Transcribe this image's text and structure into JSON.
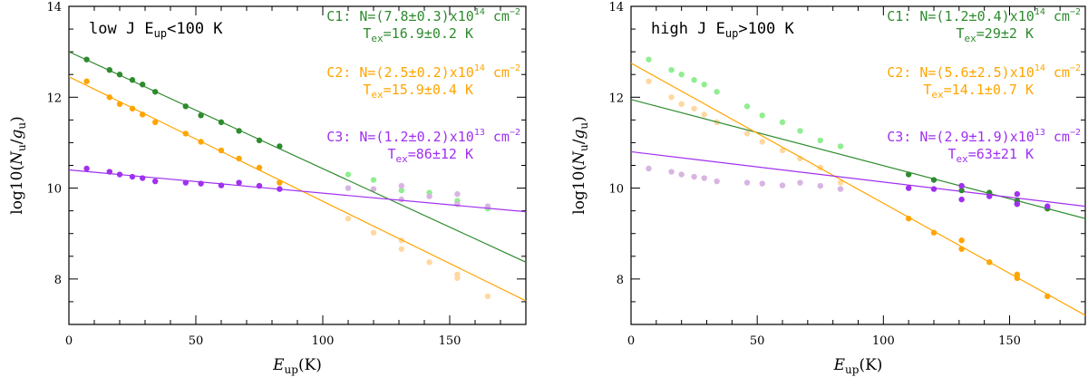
{
  "chart_data": [
    {
      "type": "scatter",
      "panel_title": {
        "pre": "low J E",
        "sub": "up",
        "post": "<100 K"
      },
      "xlabel": {
        "main": "E",
        "sub": "up",
        "post": "(K)"
      },
      "ylabel": {
        "main": "log10(N",
        "sub1": "u",
        "mid": "/g",
        "sub2": "u",
        "post": ")"
      },
      "xlim": [
        0,
        180
      ],
      "ylim": [
        7,
        14
      ],
      "xticks": [
        0,
        50,
        100,
        150
      ],
      "yticks": [
        8,
        10,
        12,
        14
      ],
      "series": [
        {
          "name": "C1",
          "color": "#2e8b2e",
          "faded_color": "#90ee90",
          "active": [
            [
              7,
              12.83
            ],
            [
              16,
              12.6
            ],
            [
              20,
              12.5
            ],
            [
              25,
              12.38
            ],
            [
              29,
              12.28
            ],
            [
              34,
              12.12
            ],
            [
              46,
              11.8
            ],
            [
              52,
              11.6
            ],
            [
              60,
              11.45
            ],
            [
              67,
              11.26
            ],
            [
              75,
              11.05
            ],
            [
              83,
              10.92
            ]
          ],
          "inactive": [
            [
              110,
              10.3
            ],
            [
              120,
              10.18
            ],
            [
              131,
              9.95
            ],
            [
              142,
              9.9
            ],
            [
              153,
              9.65
            ],
            [
              153,
              9.72
            ],
            [
              165,
              9.55
            ]
          ],
          "fit": [
            [
              0,
              13.0
            ],
            [
              180,
              8.37
            ]
          ],
          "annotation": {
            "line1": {
              "pre": "C1: N=(7.8±0.3)x10",
              "sup": "14",
              "mid": " cm",
              "sup2": "−2"
            },
            "line2": {
              "pre": "T",
              "sub": "ex",
              "post": "=16.9±0.2  K"
            }
          }
        },
        {
          "name": "C2",
          "color": "#ffa500",
          "faded_color": "#ffd8a0",
          "active": [
            [
              7,
              12.35
            ],
            [
              16,
              12.0
            ],
            [
              20,
              11.85
            ],
            [
              25,
              11.75
            ],
            [
              29,
              11.62
            ],
            [
              34,
              11.45
            ],
            [
              46,
              11.2
            ],
            [
              52,
              11.02
            ],
            [
              60,
              10.83
            ],
            [
              67,
              10.65
            ],
            [
              75,
              10.45
            ],
            [
              83,
              10.12
            ]
          ],
          "inactive": [
            [
              110,
              9.33
            ],
            [
              120,
              9.02
            ],
            [
              131,
              8.85
            ],
            [
              131,
              8.66
            ],
            [
              142,
              8.37
            ],
            [
              153,
              8.1
            ],
            [
              153,
              8.02
            ],
            [
              165,
              7.62
            ]
          ],
          "fit": [
            [
              0,
              12.45
            ],
            [
              180,
              7.52
            ]
          ],
          "annotation": {
            "line1": {
              "pre": "C2: N=(2.5±0.2)x10",
              "sup": "14",
              "mid": " cm",
              "sup2": "−2"
            },
            "line2": {
              "pre": "T",
              "sub": "ex",
              "post": "=15.9±0.4  K"
            }
          }
        },
        {
          "name": "C3",
          "color": "#a030f0",
          "faded_color": "#d8b4e2",
          "active": [
            [
              7,
              10.43
            ],
            [
              16,
              10.36
            ],
            [
              20,
              10.3
            ],
            [
              25,
              10.25
            ],
            [
              29,
              10.22
            ],
            [
              34,
              10.15
            ],
            [
              46,
              10.12
            ],
            [
              52,
              10.1
            ],
            [
              60,
              10.06
            ],
            [
              67,
              10.12
            ],
            [
              75,
              10.05
            ],
            [
              83,
              9.98
            ]
          ],
          "inactive": [
            [
              110,
              10.0
            ],
            [
              120,
              9.98
            ],
            [
              131,
              10.05
            ],
            [
              131,
              9.75
            ],
            [
              142,
              9.82
            ],
            [
              153,
              9.87
            ],
            [
              153,
              9.65
            ],
            [
              165,
              9.6
            ]
          ],
          "fit": [
            [
              0,
              10.4
            ],
            [
              180,
              9.48
            ]
          ],
          "annotation": {
            "line1": {
              "pre": "C3: N=(1.2±0.2)x10",
              "sup": "13",
              "mid": " cm",
              "sup2": "−2"
            },
            "line2": {
              "pre": "T",
              "sub": "ex",
              "post": "=86±12  K"
            }
          }
        }
      ]
    },
    {
      "type": "scatter",
      "panel_title": {
        "pre": "high J E",
        "sub": "up",
        "post": ">100 K"
      },
      "xlabel": {
        "main": "E",
        "sub": "up",
        "post": "(K)"
      },
      "ylabel": {
        "main": "log10(N",
        "sub1": "u",
        "mid": "/g",
        "sub2": "u",
        "post": ")"
      },
      "xlim": [
        0,
        180
      ],
      "ylim": [
        7,
        14
      ],
      "xticks": [
        0,
        50,
        100,
        150
      ],
      "yticks": [
        8,
        10,
        12,
        14
      ],
      "series": [
        {
          "name": "C1",
          "color": "#2e8b2e",
          "faded_color": "#90ee90",
          "active": [
            [
              110,
              10.3
            ],
            [
              120,
              10.18
            ],
            [
              131,
              9.95
            ],
            [
              142,
              9.9
            ],
            [
              153,
              9.65
            ],
            [
              153,
              9.72
            ],
            [
              165,
              9.55
            ]
          ],
          "inactive": [
            [
              7,
              12.83
            ],
            [
              16,
              12.6
            ],
            [
              20,
              12.5
            ],
            [
              25,
              12.38
            ],
            [
              29,
              12.28
            ],
            [
              34,
              12.12
            ],
            [
              46,
              11.8
            ],
            [
              52,
              11.6
            ],
            [
              60,
              11.45
            ],
            [
              67,
              11.26
            ],
            [
              75,
              11.05
            ],
            [
              83,
              10.92
            ]
          ],
          "fit": [
            [
              0,
              11.95
            ],
            [
              180,
              9.33
            ]
          ],
          "annotation": {
            "line1": {
              "pre": "C1: N=(1.2±0.4)x10",
              "sup": "14",
              "mid": " cm",
              "sup2": "−2"
            },
            "line2": {
              "pre": "T",
              "sub": "ex",
              "post": "=29±2  K"
            }
          }
        },
        {
          "name": "C2",
          "color": "#ffa500",
          "faded_color": "#ffd8a0",
          "active": [
            [
              110,
              9.33
            ],
            [
              120,
              9.02
            ],
            [
              131,
              8.85
            ],
            [
              131,
              8.66
            ],
            [
              142,
              8.37
            ],
            [
              153,
              8.1
            ],
            [
              153,
              8.02
            ],
            [
              165,
              7.62
            ]
          ],
          "inactive": [
            [
              7,
              12.35
            ],
            [
              16,
              12.0
            ],
            [
              20,
              11.85
            ],
            [
              25,
              11.75
            ],
            [
              29,
              11.62
            ],
            [
              34,
              11.45
            ],
            [
              46,
              11.2
            ],
            [
              52,
              11.02
            ],
            [
              60,
              10.83
            ],
            [
              67,
              10.65
            ],
            [
              75,
              10.45
            ],
            [
              83,
              10.12
            ]
          ],
          "fit": [
            [
              0,
              12.75
            ],
            [
              180,
              7.2
            ]
          ],
          "annotation": {
            "line1": {
              "pre": "C2: N=(5.6±2.5)x10",
              "sup": "14",
              "mid": " cm",
              "sup2": "−2"
            },
            "line2": {
              "pre": "T",
              "sub": "ex",
              "post": "=14.1±0.7  K"
            }
          }
        },
        {
          "name": "C3",
          "color": "#a030f0",
          "faded_color": "#d8b4e2",
          "active": [
            [
              110,
              10.0
            ],
            [
              120,
              9.98
            ],
            [
              131,
              10.05
            ],
            [
              131,
              9.75
            ],
            [
              142,
              9.82
            ],
            [
              153,
              9.87
            ],
            [
              153,
              9.65
            ],
            [
              165,
              9.6
            ]
          ],
          "inactive": [
            [
              7,
              10.43
            ],
            [
              16,
              10.36
            ],
            [
              20,
              10.3
            ],
            [
              25,
              10.25
            ],
            [
              29,
              10.22
            ],
            [
              34,
              10.15
            ],
            [
              46,
              10.12
            ],
            [
              52,
              10.1
            ],
            [
              60,
              10.06
            ],
            [
              67,
              10.12
            ],
            [
              75,
              10.05
            ],
            [
              83,
              9.98
            ]
          ],
          "fit": [
            [
              0,
              10.8
            ],
            [
              180,
              9.6
            ]
          ],
          "annotation": {
            "line1": {
              "pre": "C3: N=(2.9±1.9)x10",
              "sup": "13",
              "mid": " cm",
              "sup2": "−2"
            },
            "line2": {
              "pre": "T",
              "sub": "ex",
              "post": "=63±21  K"
            }
          }
        }
      ]
    }
  ]
}
